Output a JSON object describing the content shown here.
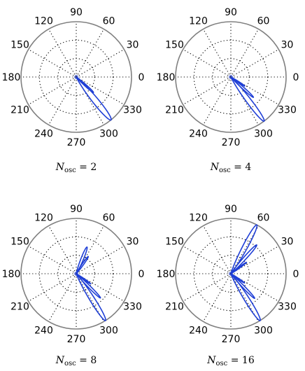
{
  "chart_data": [
    {
      "type": "polar",
      "caption": {
        "symbol": "N",
        "sub": "osc",
        "rest": " = 2"
      },
      "angle_tick_labels": [
        "0",
        "30",
        "60",
        "90",
        "120",
        "150",
        "180",
        "210",
        "240",
        "270",
        "300",
        "330"
      ],
      "r_max": 1,
      "grid": true,
      "series": [
        {
          "color": "#1f3fd6",
          "lobes": [
            {
              "angle_deg": 309,
              "magnitude": 1.0,
              "width_deg": 6
            },
            {
              "angle_deg": 318,
              "magnitude": 0.42,
              "width_deg": 4
            }
          ]
        }
      ]
    },
    {
      "type": "polar",
      "caption": {
        "symbol": "N",
        "sub": "osc",
        "rest": " = 4"
      },
      "angle_tick_labels": [
        "0",
        "30",
        "60",
        "90",
        "120",
        "150",
        "180",
        "210",
        "240",
        "270",
        "300",
        "330"
      ],
      "r_max": 1,
      "grid": true,
      "series": [
        {
          "color": "#1f3fd6",
          "lobes": [
            {
              "angle_deg": 307,
              "magnitude": 1.0,
              "width_deg": 5
            },
            {
              "angle_deg": 318,
              "magnitude": 0.55,
              "width_deg": 3.5
            },
            {
              "angle_deg": 327,
              "magnitude": 0.3,
              "width_deg": 3
            }
          ]
        }
      ]
    },
    {
      "type": "polar",
      "caption": {
        "symbol": "N",
        "sub": "osc",
        "rest": " = 8"
      },
      "angle_tick_labels": [
        "0",
        "30",
        "60",
        "90",
        "120",
        "150",
        "180",
        "210",
        "240",
        "270",
        "300",
        "330"
      ],
      "r_max": 1,
      "grid": true,
      "series": [
        {
          "color": "#1f3fd6",
          "lobes": [
            {
              "angle_deg": 302,
              "magnitude": 1.0,
              "width_deg": 5
            },
            {
              "angle_deg": 315,
              "magnitude": 0.62,
              "width_deg": 3.5
            },
            {
              "angle_deg": 325,
              "magnitude": 0.32,
              "width_deg": 3
            },
            {
              "angle_deg": 68,
              "magnitude": 0.52,
              "width_deg": 5
            },
            {
              "angle_deg": 55,
              "magnitude": 0.38,
              "width_deg": 4
            }
          ]
        }
      ]
    },
    {
      "type": "polar",
      "caption": {
        "symbol": "N",
        "sub": "osc",
        "rest": " = 16"
      },
      "angle_tick_labels": [
        "0",
        "30",
        "60",
        "90",
        "120",
        "150",
        "180",
        "210",
        "240",
        "270",
        "300",
        "330"
      ],
      "r_max": 1,
      "grid": true,
      "series": [
        {
          "color": "#1f3fd6",
          "lobes": [
            {
              "angle_deg": 302,
              "magnitude": 1.0,
              "width_deg": 5
            },
            {
              "angle_deg": 314,
              "magnitude": 0.62,
              "width_deg": 3.5
            },
            {
              "angle_deg": 326,
              "magnitude": 0.3,
              "width_deg": 3
            },
            {
              "angle_deg": 62,
              "magnitude": 1.0,
              "width_deg": 5
            },
            {
              "angle_deg": 48,
              "magnitude": 0.7,
              "width_deg": 4
            },
            {
              "angle_deg": 36,
              "magnitude": 0.35,
              "width_deg": 3
            }
          ]
        }
      ]
    }
  ]
}
